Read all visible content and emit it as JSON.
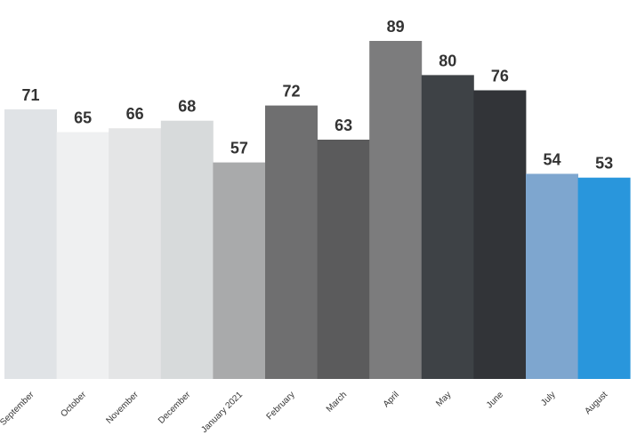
{
  "chart_data": {
    "type": "bar",
    "title": "",
    "xlabel": "",
    "ylabel": "",
    "ylim": [
      0,
      89
    ],
    "grid": false,
    "legend": "none",
    "categories": [
      "September",
      "October",
      "November",
      "December",
      "January 2021",
      "February",
      "March",
      "April",
      "May",
      "June",
      "July",
      "August"
    ],
    "values": [
      71,
      65,
      66,
      68,
      57,
      72,
      63,
      89,
      80,
      76,
      54,
      53
    ],
    "colors": [
      "#e0e3e6",
      "#eff0f1",
      "#e4e5e6",
      "#d7dadb",
      "#a9aaab",
      "#6f6f70",
      "#5b5b5c",
      "#7c7c7d",
      "#3e4246",
      "#323438",
      "#7ea6cf",
      "#2996dc"
    ]
  }
}
